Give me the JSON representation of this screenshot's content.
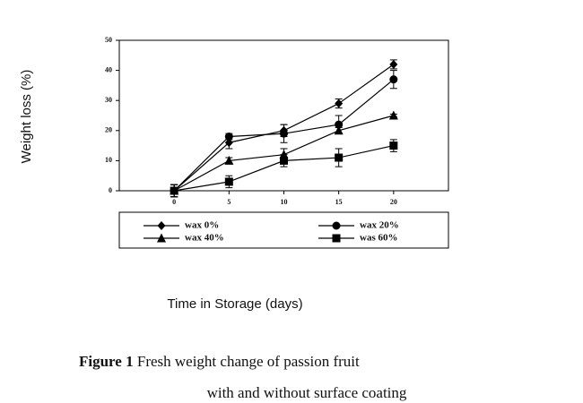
{
  "chart_data": {
    "type": "line",
    "x_label": "Time in Storage (days)",
    "y_label": "Weight loss (%)",
    "x": [
      0,
      5,
      10,
      15,
      20
    ],
    "xlim": [
      -5,
      25
    ],
    "xticks": [
      0,
      5,
      10,
      15,
      20
    ],
    "ylim": [
      0,
      50
    ],
    "yticks": [
      0,
      10,
      20,
      30,
      40,
      50
    ],
    "series": [
      {
        "name": "wax 0%",
        "color": "#000000",
        "marker": "diamond",
        "values": [
          0,
          16,
          20,
          29,
          42
        ],
        "errors": [
          2,
          2,
          2,
          1.5,
          1.5
        ]
      },
      {
        "name": "wax 20%",
        "color": "#000000",
        "marker": "circle",
        "values": [
          0,
          18,
          19,
          22,
          37
        ],
        "errors": [
          2,
          1,
          3,
          3,
          3
        ]
      },
      {
        "name": "wax 40%",
        "color": "#000000",
        "marker": "triangle",
        "values": [
          0,
          10,
          12,
          20,
          25
        ],
        "errors": [
          2,
          1,
          2,
          1,
          0.5
        ]
      },
      {
        "name": "was 60%",
        "color": "#000000",
        "marker": "square",
        "values": [
          0,
          3,
          10,
          11,
          15
        ],
        "errors": [
          2,
          2,
          2,
          3,
          2
        ]
      }
    ],
    "caption": {
      "label": "Figure 1",
      "lines": [
        "Fresh weight change of passion fruit",
        "with and without surface coating"
      ]
    }
  }
}
